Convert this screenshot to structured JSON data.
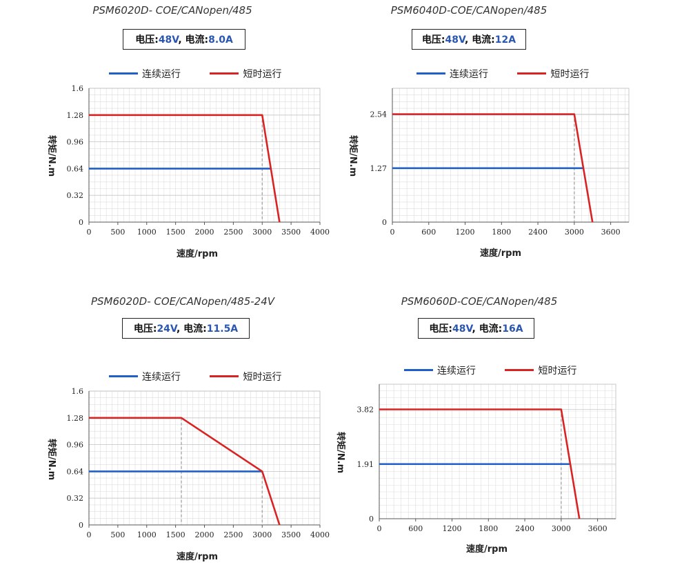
{
  "colors": {
    "continuous": "#1f5fc8",
    "short": "#d92323",
    "grid": "#dcdcdc",
    "guide": "#999999",
    "spec_value": "#2a56b0"
  },
  "legend": {
    "continuous": "连续运行",
    "short": "短时运行"
  },
  "axis": {
    "ylabel": "转矩/N.m",
    "xlabel": "速度/rpm"
  },
  "spec_labels": {
    "voltage": "电压:",
    "current": "电流:",
    "sep": ","
  },
  "panels": [
    {
      "title": "PSM6020D- COE/CANopen/485",
      "voltage": "48V",
      "current": "8.0A"
    },
    {
      "title": "PSM6040D-COE/CANopen/485",
      "voltage": "48V",
      "current": "12A"
    },
    {
      "title": "PSM6020D- COE/CANopen/485-24V",
      "voltage": "24V",
      "current": "11.5A"
    },
    {
      "title": "PSM6060D-COE/CANopen/485",
      "voltage": "48V",
      "current": "16A"
    }
  ],
  "chart_data": [
    {
      "type": "line",
      "title": "PSM6020D- COE/CANopen/485",
      "xlabel": "速度/rpm",
      "ylabel": "转矩/N.m",
      "xlim": [
        0,
        4000
      ],
      "ylim": [
        0,
        1.6
      ],
      "x_ticks": [
        0,
        500,
        1000,
        1500,
        2000,
        2500,
        3000,
        3500,
        4000
      ],
      "x_tick_labels": [
        "0",
        "500",
        "1000",
        "1500",
        "2000",
        "2500",
        "3000",
        "3500",
        "4000"
      ],
      "y_ticks": [
        0,
        0.32,
        0.64,
        0.96,
        1.28,
        1.6
      ],
      "y_tick_labels": [
        "0",
        "0.32",
        "0.64",
        "0.96",
        "1.28",
        "1.6"
      ],
      "grid": true,
      "legend_position": "top",
      "series": [
        {
          "name": "连续运行",
          "x": [
            0,
            3150
          ],
          "y": [
            0.64,
            0.64
          ]
        },
        {
          "name": "短时运行",
          "x": [
            0,
            3000,
            3300
          ],
          "y": [
            1.28,
            1.28,
            0
          ]
        }
      ],
      "guides": [
        {
          "x": 3000,
          "y": 1.28
        }
      ]
    },
    {
      "type": "line",
      "title": "PSM6040D-COE/CANopen/485",
      "xlabel": "速度/rpm",
      "ylabel": "转矩/N.m",
      "xlim": [
        0,
        3900
      ],
      "ylim": [
        0,
        3.15
      ],
      "x_ticks": [
        0,
        600,
        1200,
        1800,
        2400,
        3000,
        3600
      ],
      "x_tick_labels": [
        "0",
        "600",
        "1200",
        "1800",
        "2400",
        "3000",
        "3600"
      ],
      "y_ticks": [
        0,
        1.27,
        2.54
      ],
      "y_tick_labels": [
        "0",
        "1.27",
        "2.54"
      ],
      "grid": true,
      "legend_position": "top",
      "series": [
        {
          "name": "连续运行",
          "x": [
            0,
            3150
          ],
          "y": [
            1.27,
            1.27
          ]
        },
        {
          "name": "短时运行",
          "x": [
            0,
            3000,
            3150,
            3300
          ],
          "y": [
            2.54,
            2.54,
            1.27,
            0
          ]
        }
      ],
      "guides": [
        {
          "x": 3000,
          "y": 2.54
        }
      ]
    },
    {
      "type": "line",
      "title": "PSM6020D- COE/CANopen/485-24V",
      "xlabel": "速度/rpm",
      "ylabel": "转矩/N.m",
      "xlim": [
        0,
        4000
      ],
      "ylim": [
        0,
        1.6
      ],
      "x_ticks": [
        0,
        500,
        1000,
        1500,
        2000,
        2500,
        3000,
        3500,
        4000
      ],
      "x_tick_labels": [
        "0",
        "500",
        "1000",
        "1500",
        "2000",
        "2500",
        "3000",
        "3500",
        "4000"
      ],
      "y_ticks": [
        0,
        0.32,
        0.64,
        0.96,
        1.28,
        1.6
      ],
      "y_tick_labels": [
        "0",
        "0.32",
        "0.64",
        "0.96",
        "1.28",
        "1.6"
      ],
      "grid": true,
      "legend_position": "top",
      "series": [
        {
          "name": "连续运行",
          "x": [
            0,
            3000
          ],
          "y": [
            0.64,
            0.64
          ]
        },
        {
          "name": "短时运行",
          "x": [
            0,
            1600,
            3000,
            3300
          ],
          "y": [
            1.28,
            1.28,
            0.64,
            0
          ]
        }
      ],
      "guides": [
        {
          "x": 1600,
          "y": 1.28
        },
        {
          "x": 3000,
          "y": 0.64
        }
      ]
    },
    {
      "type": "line",
      "title": "PSM6060D-COE/CANopen/485",
      "xlabel": "速度/rpm",
      "ylabel": "转矩/N.m",
      "xlim": [
        0,
        3900
      ],
      "ylim": [
        0,
        4.7
      ],
      "x_ticks": [
        0,
        600,
        1200,
        1800,
        2400,
        3000,
        3600
      ],
      "x_tick_labels": [
        "0",
        "600",
        "1200",
        "1800",
        "2400",
        "3000",
        "3600"
      ],
      "y_ticks": [
        0,
        1.91,
        3.82
      ],
      "y_tick_labels": [
        "0",
        "1.91",
        "3.82"
      ],
      "grid": true,
      "legend_position": "top",
      "series": [
        {
          "name": "连续运行",
          "x": [
            0,
            3150
          ],
          "y": [
            1.91,
            1.91
          ]
        },
        {
          "name": "短时运行",
          "x": [
            0,
            3000,
            3300
          ],
          "y": [
            3.82,
            3.82,
            0
          ]
        }
      ],
      "guides": [
        {
          "x": 3000,
          "y": 3.82
        }
      ]
    }
  ]
}
